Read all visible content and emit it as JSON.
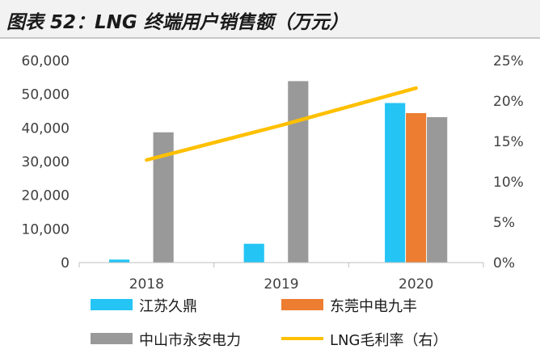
{
  "page": {
    "title": "图表 52：LNG 终端用户销售额（万元）"
  },
  "chart_data": {
    "type": "bar",
    "categories": [
      "2018",
      "2019",
      "2020"
    ],
    "series": [
      {
        "name": "江苏久鼎",
        "type": "bar",
        "axis": "left",
        "color": "#24c4f5",
        "values": [
          1000,
          5700,
          47500
        ]
      },
      {
        "name": "东莞中电九丰",
        "type": "bar",
        "axis": "left",
        "color": "#ed7d31",
        "values": [
          null,
          null,
          44500
        ]
      },
      {
        "name": "中山市永安电力",
        "type": "bar",
        "axis": "left",
        "color": "#999999",
        "values": [
          38800,
          54000,
          43300
        ]
      },
      {
        "name": "LNG毛利率（右）",
        "type": "line",
        "axis": "right",
        "color": "#ffc000",
        "values": [
          12.7,
          17.0,
          21.6
        ]
      }
    ],
    "y_left": {
      "min": 0,
      "max": 60000,
      "ticks": [
        "0",
        "10,000",
        "20,000",
        "30,000",
        "40,000",
        "50,000",
        "60,000"
      ]
    },
    "y_right": {
      "min": 0,
      "max": 25,
      "unit": "%",
      "ticks": [
        "0%",
        "5%",
        "10%",
        "15%",
        "20%",
        "25%"
      ]
    },
    "grid": false,
    "legend_position": "bottom"
  }
}
